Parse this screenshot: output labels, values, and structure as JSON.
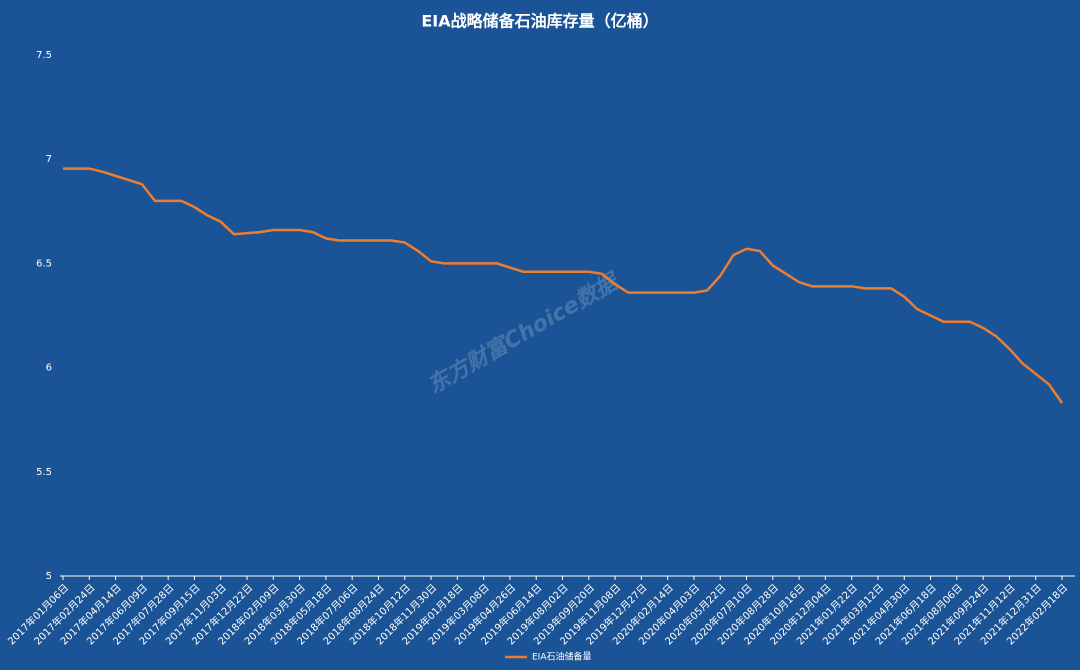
{
  "chart_data": {
    "type": "line",
    "title": "EIA战略储备石油库存量（亿桶）",
    "watermark": "东方财富Choice数据",
    "categories": [
      "2017年01月06日",
      null,
      "2017年02月24日",
      null,
      "2017年04月14日",
      null,
      "2017年06月09日",
      null,
      "2017年07月28日",
      null,
      "2017年09月15日",
      null,
      "2017年11月03日",
      null,
      "2017年12月22日",
      null,
      "2018年02月09日",
      null,
      "2018年03月30日",
      null,
      "2018年05月18日",
      null,
      "2018年07月06日",
      null,
      "2018年08月24日",
      null,
      "2018年10月12日",
      null,
      "2018年11月30日",
      null,
      "2019年01月18日",
      null,
      "2019年03月08日",
      null,
      "2019年04月26日",
      null,
      "2019年06月14日",
      null,
      "2019年08月02日",
      null,
      "2019年09月20日",
      null,
      "2019年11月08日",
      null,
      "2019年12月27日",
      null,
      "2020年02月14日",
      null,
      "2020年04月03日",
      null,
      "2020年05月22日",
      null,
      "2020年07月10日",
      null,
      "2020年08月28日",
      null,
      "2020年10月16日",
      null,
      "2020年12月04日",
      null,
      "2021年01月22日",
      null,
      "2021年03月12日",
      null,
      "2021年04月30日",
      null,
      "2021年06月18日",
      null,
      "2021年08月06日",
      null,
      "2021年09月24日",
      null,
      "2021年11月12日",
      null,
      "2021年12月31日",
      null,
      "2022年02月18日"
    ],
    "series": [
      {
        "name": "EIA石油储备量",
        "color": "#ed7d31",
        "values": [
          6.955,
          6.955,
          6.955,
          6.94,
          6.92,
          6.9,
          6.88,
          6.8,
          6.8,
          6.8,
          6.77,
          6.73,
          6.7,
          6.64,
          6.645,
          6.65,
          6.66,
          6.66,
          6.66,
          6.65,
          6.62,
          6.61,
          6.61,
          6.61,
          6.61,
          6.61,
          6.6,
          6.56,
          6.51,
          6.5,
          6.5,
          6.5,
          6.5,
          6.5,
          6.48,
          6.46,
          6.46,
          6.46,
          6.46,
          6.46,
          6.46,
          6.45,
          6.4,
          6.36,
          6.36,
          6.36,
          6.36,
          6.36,
          6.36,
          6.37,
          6.44,
          6.54,
          6.57,
          6.56,
          6.49,
          6.45,
          6.41,
          6.39,
          6.39,
          6.39,
          6.39,
          6.38,
          6.38,
          6.38,
          6.34,
          6.28,
          6.25,
          6.22,
          6.22,
          6.22,
          6.19,
          6.15,
          6.09,
          6.02,
          5.97,
          5.92,
          5.83
        ]
      }
    ],
    "ylim": [
      5,
      7.5
    ],
    "yticks": [
      5,
      5.5,
      6,
      6.5,
      7,
      7.5
    ],
    "grid": false,
    "legend": "bottom"
  }
}
